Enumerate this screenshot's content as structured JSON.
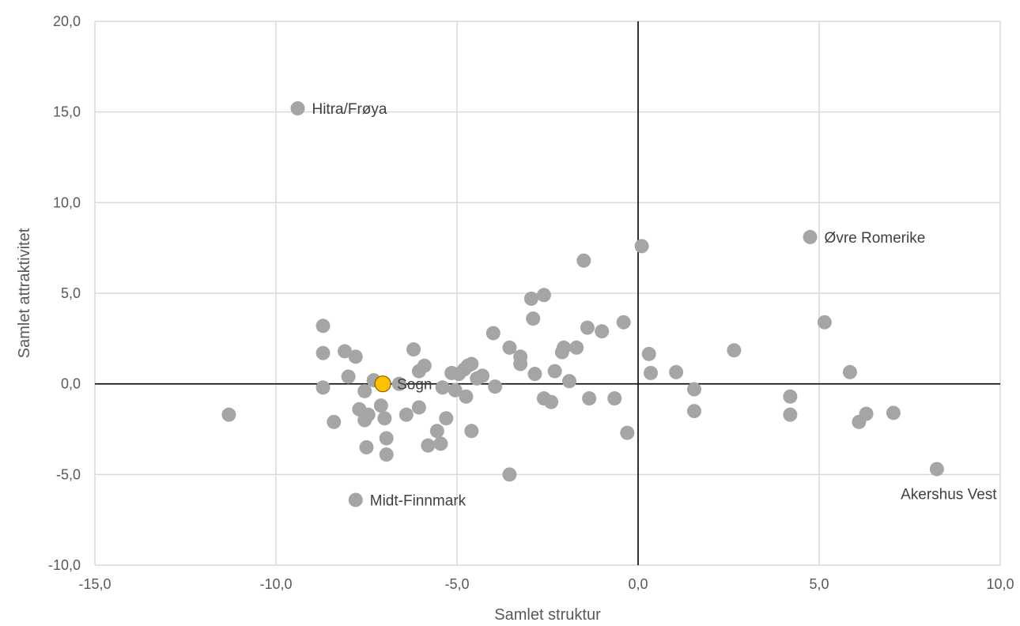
{
  "chart_data": {
    "type": "scatter",
    "title": "",
    "xlabel": "Samlet struktur",
    "ylabel": "Samlet attraktivitet",
    "xlim": [
      -15,
      10
    ],
    "ylim": [
      -10,
      20
    ],
    "x_ticks": [
      "-15,0",
      "-10,0",
      "-5,0",
      "0,0",
      "5,0",
      "10,0"
    ],
    "y_ticks": [
      "-10,0",
      "-5,0",
      "0,0",
      "5,0",
      "10,0",
      "15,0",
      "20,0"
    ],
    "grid": "vertical",
    "colors": {
      "points": "#a5a5a5",
      "highlight": "#ffc000",
      "highlight_stroke": "#7f6000",
      "grid": "#d9d9d9",
      "zero_axes": "#000000",
      "text": "#595959"
    },
    "series": [
      {
        "points": [
          {
            "x": -11.3,
            "y": -1.7
          },
          {
            "x": -9.4,
            "y": 15.2
          },
          {
            "x": -8.7,
            "y": 3.2
          },
          {
            "x": -8.7,
            "y": 1.7
          },
          {
            "x": -8.7,
            "y": -0.2
          },
          {
            "x": -8.4,
            "y": -2.1
          },
          {
            "x": -8.1,
            "y": 1.8
          },
          {
            "x": -8.0,
            "y": 0.4
          },
          {
            "x": -7.8,
            "y": 1.5
          },
          {
            "x": -7.8,
            "y": -6.4
          },
          {
            "x": -7.7,
            "y": -1.4
          },
          {
            "x": -7.55,
            "y": -0.4
          },
          {
            "x": -7.55,
            "y": -2.0
          },
          {
            "x": -7.5,
            "y": -3.5
          },
          {
            "x": -7.45,
            "y": -1.7
          },
          {
            "x": -7.3,
            "y": 0.2
          },
          {
            "x": -7.1,
            "y": -1.2
          },
          {
            "x": -7.0,
            "y": -1.9
          },
          {
            "x": -6.95,
            "y": -3.0
          },
          {
            "x": -6.95,
            "y": -3.9
          },
          {
            "x": -6.6,
            "y": 0.0
          },
          {
            "x": -6.4,
            "y": -1.7
          },
          {
            "x": -6.2,
            "y": 1.9
          },
          {
            "x": -6.05,
            "y": 0.7
          },
          {
            "x": -6.05,
            "y": -1.3
          },
          {
            "x": -5.9,
            "y": 1.0
          },
          {
            "x": -5.8,
            "y": -3.4
          },
          {
            "x": -5.55,
            "y": -2.6
          },
          {
            "x": -5.45,
            "y": -3.3
          },
          {
            "x": -5.4,
            "y": -0.2
          },
          {
            "x": -5.3,
            "y": -1.9
          },
          {
            "x": -5.15,
            "y": 0.6
          },
          {
            "x": -5.05,
            "y": -0.35
          },
          {
            "x": -4.95,
            "y": 0.55
          },
          {
            "x": -4.8,
            "y": 0.8
          },
          {
            "x": -4.75,
            "y": -0.7
          },
          {
            "x": -4.7,
            "y": 1.0
          },
          {
            "x": -4.6,
            "y": 1.1
          },
          {
            "x": -4.6,
            "y": -2.6
          },
          {
            "x": -4.45,
            "y": 0.3
          },
          {
            "x": -4.3,
            "y": 0.45
          },
          {
            "x": -4.0,
            "y": 2.8
          },
          {
            "x": -3.95,
            "y": -0.15
          },
          {
            "x": -3.55,
            "y": 2.0
          },
          {
            "x": -3.55,
            "y": -5.0
          },
          {
            "x": -3.25,
            "y": 1.1
          },
          {
            "x": -3.25,
            "y": 1.5
          },
          {
            "x": -2.95,
            "y": 4.7
          },
          {
            "x": -2.9,
            "y": 3.6
          },
          {
            "x": -2.85,
            "y": 0.55
          },
          {
            "x": -2.6,
            "y": 4.9
          },
          {
            "x": -2.6,
            "y": -0.8
          },
          {
            "x": -2.4,
            "y": -1.0
          },
          {
            "x": -2.3,
            "y": 0.7
          },
          {
            "x": -2.1,
            "y": 1.75
          },
          {
            "x": -2.05,
            "y": 2.0
          },
          {
            "x": -1.9,
            "y": 0.15
          },
          {
            "x": -1.7,
            "y": 2.0
          },
          {
            "x": -1.5,
            "y": 6.8
          },
          {
            "x": -1.4,
            "y": 3.1
          },
          {
            "x": -1.35,
            "y": -0.8
          },
          {
            "x": -1.0,
            "y": 2.9
          },
          {
            "x": -0.65,
            "y": -0.8
          },
          {
            "x": -0.4,
            "y": 3.4
          },
          {
            "x": -0.3,
            "y": -2.7
          },
          {
            "x": 0.1,
            "y": 7.6
          },
          {
            "x": 0.3,
            "y": 1.65
          },
          {
            "x": 0.35,
            "y": 0.6
          },
          {
            "x": 1.05,
            "y": 0.65
          },
          {
            "x": 1.55,
            "y": -0.3
          },
          {
            "x": 1.55,
            "y": -1.5
          },
          {
            "x": 2.65,
            "y": 1.85
          },
          {
            "x": 4.2,
            "y": -0.7
          },
          {
            "x": 4.2,
            "y": -1.7
          },
          {
            "x": 4.75,
            "y": 8.1
          },
          {
            "x": 5.15,
            "y": 3.4
          },
          {
            "x": 5.85,
            "y": 0.65
          },
          {
            "x": 6.1,
            "y": -2.1
          },
          {
            "x": 6.3,
            "y": -1.65
          },
          {
            "x": 7.05,
            "y": -1.6
          },
          {
            "x": 8.25,
            "y": -4.7
          }
        ]
      },
      {
        "highlight": true,
        "points": [
          {
            "x": -7.05,
            "y": 0.0
          }
        ]
      }
    ],
    "annotations": [
      {
        "text": "Hitra/Frøya",
        "x": -9.4,
        "y": 15.2,
        "anchor": "right"
      },
      {
        "text": "Øvre Romerike",
        "x": 4.75,
        "y": 8.1,
        "anchor": "right"
      },
      {
        "text": "Sogn",
        "x": -7.05,
        "y": 0.0,
        "anchor": "right"
      },
      {
        "text": "Midt-Finnmark",
        "x": -7.8,
        "y": -6.4,
        "anchor": "right"
      },
      {
        "text": "Akershus Vest",
        "x": 8.25,
        "y": -4.7,
        "anchor": "below"
      }
    ]
  }
}
